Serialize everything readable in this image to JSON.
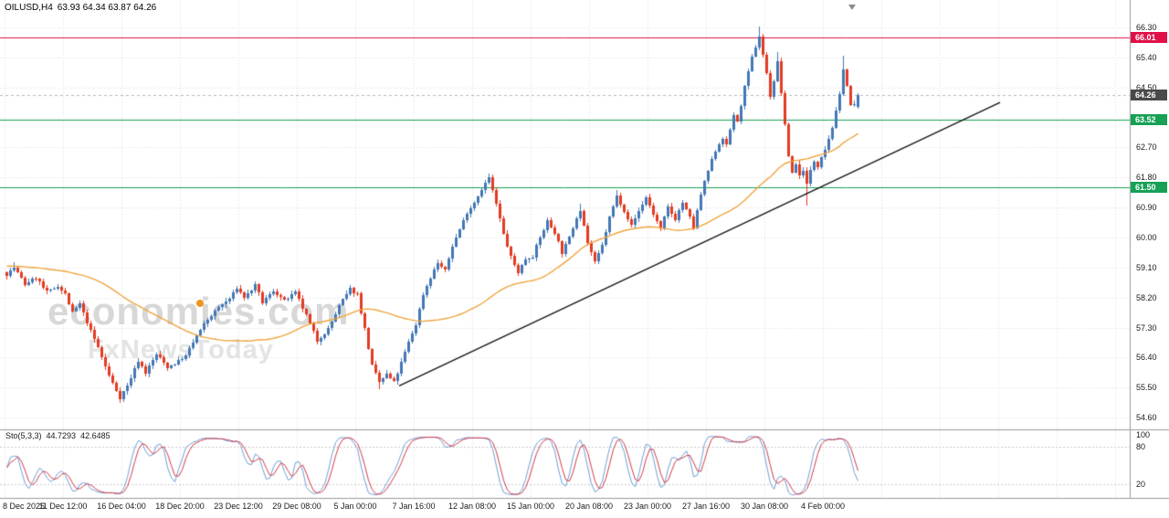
{
  "header": {
    "symbol_period": "OILUSD,H4",
    "ohlc_line": "63.93 64.34 63.87 64.26"
  },
  "watermark": {
    "brand": "economies.com",
    "subtitle": "FxNewsToday",
    "dot_color": "#f0941e"
  },
  "levels": {
    "resistance": {
      "label": "66.01",
      "price": 66.01,
      "color": "#e01048"
    },
    "current": {
      "label": "64.26",
      "price": 64.26,
      "color": "#4a4a4a"
    },
    "support1": {
      "label": "63.52",
      "price": 63.52,
      "color": "#16a155"
    },
    "support2": {
      "label": "61.50",
      "price": 61.5,
      "color": "#16a155"
    }
  },
  "indicator": {
    "name": "Sto(5,3,3)",
    "value_main": "44.7293",
    "value_signal": "42.6485"
  },
  "chart_data": {
    "type": "candlestick",
    "symbol": "OILUSD",
    "timeframe": "H4",
    "last_quote": {
      "open": 63.93,
      "high": 64.34,
      "low": 63.87,
      "close": 64.26
    },
    "y_ticks": [
      66.3,
      65.4,
      64.5,
      63.6,
      62.7,
      61.8,
      60.9,
      60.0,
      59.1,
      58.2,
      57.3,
      56.4,
      55.5,
      54.6
    ],
    "time_labels": [
      "8 Dec 2025",
      "11 Dec 12:00",
      "16 Dec 04:00",
      "18 Dec 20:00",
      "23 Dec 12:00",
      "29 Dec 08:00",
      "5 Jan 00:00",
      "7 Jan 16:00",
      "12 Jan 08:00",
      "15 Jan 00:00",
      "20 Jan 08:00",
      "23 Jan 00:00",
      "27 Jan 16:00",
      "30 Jan 08:00",
      "4 Feb 00:00"
    ],
    "bars": 234,
    "price_path_anchors": [
      [
        0,
        58.9
      ],
      [
        2,
        59.1
      ],
      [
        5,
        58.6
      ],
      [
        8,
        58.8
      ],
      [
        11,
        58.35
      ],
      [
        14,
        58.55
      ],
      [
        16,
        58.3
      ],
      [
        18,
        57.75
      ],
      [
        20,
        58.0
      ],
      [
        22,
        57.45
      ],
      [
        25,
        56.7
      ],
      [
        28,
        55.85
      ],
      [
        31,
        55.2
      ],
      [
        33,
        55.55
      ],
      [
        36,
        56.3
      ],
      [
        38,
        55.95
      ],
      [
        41,
        56.5
      ],
      [
        44,
        56.1
      ],
      [
        47,
        56.3
      ],
      [
        49,
        56.45
      ],
      [
        52,
        57.05
      ],
      [
        55,
        57.55
      ],
      [
        58,
        57.9
      ],
      [
        61,
        58.15
      ],
      [
        63,
        58.5
      ],
      [
        65,
        58.2
      ],
      [
        68,
        58.55
      ],
      [
        70,
        58.05
      ],
      [
        73,
        58.4
      ],
      [
        76,
        58.1
      ],
      [
        79,
        58.35
      ],
      [
        82,
        57.65
      ],
      [
        85,
        56.9
      ],
      [
        88,
        57.25
      ],
      [
        91,
        57.95
      ],
      [
        94,
        58.45
      ],
      [
        96,
        58.3
      ],
      [
        98,
        57.25
      ],
      [
        100,
        56.15
      ],
      [
        102,
        55.65
      ],
      [
        104,
        55.9
      ],
      [
        106,
        55.65
      ],
      [
        108,
        56.25
      ],
      [
        110,
        56.85
      ],
      [
        112,
        57.4
      ],
      [
        114,
        58.3
      ],
      [
        116,
        58.8
      ],
      [
        118,
        59.25
      ],
      [
        120,
        59.0
      ],
      [
        122,
        59.75
      ],
      [
        124,
        60.25
      ],
      [
        126,
        60.75
      ],
      [
        128,
        61.05
      ],
      [
        130,
        61.45
      ],
      [
        132,
        61.8
      ],
      [
        134,
        61.0
      ],
      [
        136,
        60.1
      ],
      [
        138,
        59.4
      ],
      [
        140,
        58.95
      ],
      [
        142,
        59.35
      ],
      [
        144,
        59.45
      ],
      [
        146,
        60.0
      ],
      [
        148,
        60.5
      ],
      [
        150,
        60.15
      ],
      [
        152,
        59.55
      ],
      [
        154,
        60.0
      ],
      [
        156,
        60.6
      ],
      [
        157,
        60.85
      ],
      [
        159,
        59.85
      ],
      [
        161,
        59.25
      ],
      [
        163,
        59.75
      ],
      [
        165,
        60.6
      ],
      [
        167,
        61.25
      ],
      [
        169,
        60.8
      ],
      [
        171,
        60.35
      ],
      [
        173,
        60.8
      ],
      [
        175,
        61.2
      ],
      [
        177,
        60.7
      ],
      [
        179,
        60.25
      ],
      [
        181,
        60.9
      ],
      [
        183,
        60.55
      ],
      [
        185,
        61.05
      ],
      [
        187,
        60.6
      ],
      [
        188,
        60.3
      ],
      [
        190,
        61.3
      ],
      [
        192,
        62.0
      ],
      [
        194,
        62.6
      ],
      [
        196,
        63.0
      ],
      [
        197,
        62.75
      ],
      [
        199,
        63.7
      ],
      [
        200,
        63.45
      ],
      [
        202,
        64.5
      ],
      [
        204,
        65.4
      ],
      [
        206,
        66.05
      ],
      [
        207,
        65.5
      ],
      [
        208,
        64.9
      ],
      [
        209,
        64.25
      ],
      [
        210,
        64.7
      ],
      [
        211,
        65.25
      ],
      [
        212,
        64.35
      ],
      [
        213,
        63.35
      ],
      [
        214,
        62.45
      ],
      [
        215,
        61.95
      ],
      [
        216,
        62.2
      ],
      [
        217,
        61.85
      ],
      [
        218,
        62.05
      ],
      [
        219,
        61.6
      ],
      [
        220,
        62.0
      ],
      [
        221,
        62.3
      ],
      [
        222,
        62.15
      ],
      [
        223,
        62.45
      ],
      [
        224,
        62.65
      ],
      [
        226,
        63.3
      ],
      [
        228,
        64.25
      ],
      [
        229,
        65.1
      ],
      [
        230,
        64.55
      ],
      [
        231,
        63.95
      ],
      [
        232,
        64.0
      ],
      [
        233,
        64.26
      ]
    ],
    "extremes": [
      {
        "bar": 2,
        "high": 59.25
      },
      {
        "bar": 31,
        "low": 55.05
      },
      {
        "bar": 102,
        "low": 55.45
      },
      {
        "bar": 132,
        "high": 61.92
      },
      {
        "bar": 157,
        "high": 61.02
      },
      {
        "bar": 167,
        "high": 61.42
      },
      {
        "bar": 206,
        "high": 66.32
      },
      {
        "bar": 211,
        "high": 65.55
      },
      {
        "bar": 219,
        "low": 60.95
      },
      {
        "bar": 229,
        "high": 65.45
      }
    ],
    "trendline": {
      "from_bar": 107.5,
      "from_price": 55.55,
      "to_bar": 272,
      "to_price": 64.05
    },
    "moving_average": {
      "period": 50,
      "color": "#efa43e"
    },
    "stochastic": {
      "params": [
        5,
        3,
        3
      ],
      "k_color": "#6d9ed6",
      "d_color": "#cf3a45",
      "levels": [
        80,
        20
      ],
      "scale_ticks": [
        100,
        80,
        20
      ]
    },
    "colors": {
      "bull": "#4377b6",
      "bear": "#e23b22",
      "grid": "#dfdfdf",
      "separator": "#9a9a9a",
      "trendline": "#101010",
      "current_price_line": "#b6b6b6"
    }
  }
}
